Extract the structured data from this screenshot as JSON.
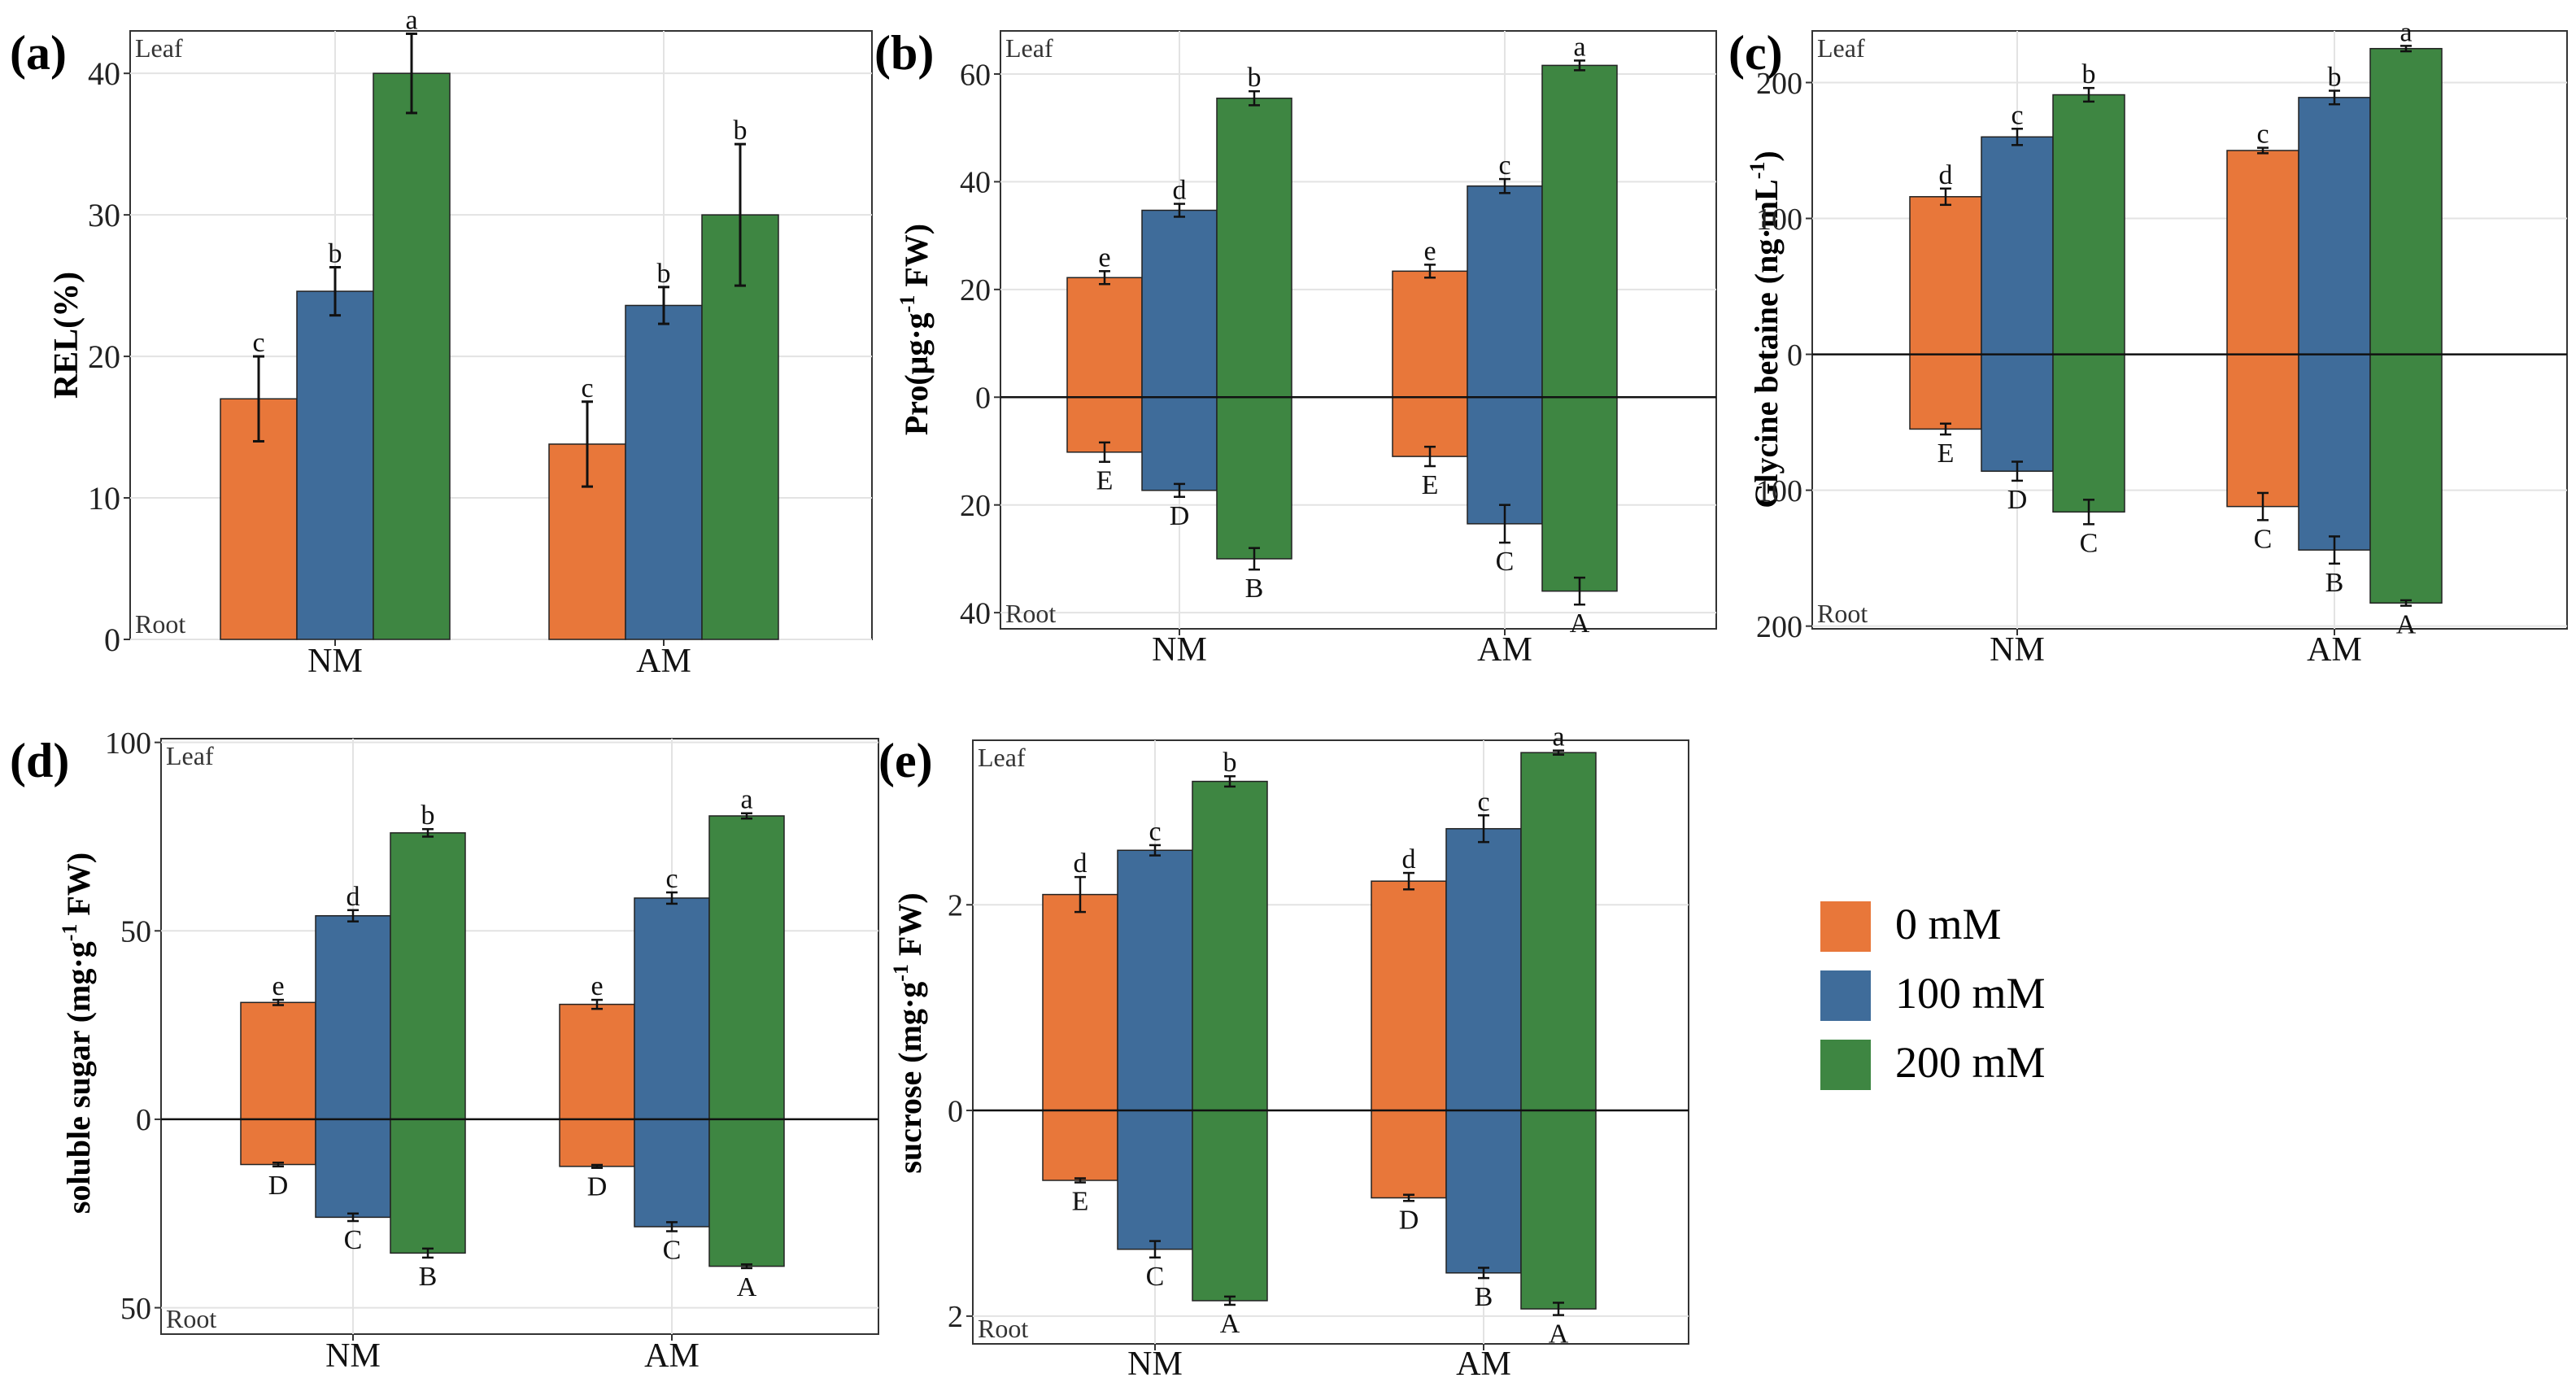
{
  "colors": {
    "g0": "#E8773A",
    "g100": "#3F6C9A",
    "g200": "#3E8642",
    "axis": "#333333",
    "grid": "#e3e3e3"
  },
  "legend": {
    "items": [
      "0 mM",
      "100 mM",
      "200 mM"
    ]
  },
  "chart_data": [
    {
      "type": "bar",
      "panel": "(a)",
      "ylabel": "REL(%)",
      "bidirectional": false,
      "categories": [
        "NM",
        "AM"
      ],
      "top_label": "Leaf",
      "bottom_label": "Root",
      "ylim": [
        0,
        43
      ],
      "yticks": [
        0,
        10,
        20,
        30,
        40
      ],
      "ytick_labels": [
        "0",
        "10",
        "20",
        "30",
        "40"
      ],
      "series": [
        {
          "name": "0 mM",
          "values": [
            17,
            13.8
          ],
          "errors": [
            3,
            3
          ],
          "letters": [
            "c",
            "c"
          ]
        },
        {
          "name": "100 mM",
          "values": [
            24.6,
            23.6
          ],
          "errors": [
            1.7,
            1.3
          ],
          "letters": [
            "b",
            "b"
          ]
        },
        {
          "name": "200 mM",
          "values": [
            40,
            30
          ],
          "errors": [
            2.8,
            5
          ],
          "letters": [
            "a",
            "b"
          ]
        }
      ]
    },
    {
      "type": "bar",
      "panel": "(b)",
      "ylabel_main": "Pro(μg·g",
      "ylabel_sup": "-1",
      "ylabel_tail": " FW)",
      "bidirectional": true,
      "categories": [
        "NM",
        "AM"
      ],
      "top_label": "Leaf",
      "bottom_label": "Root",
      "ylim": [
        -43,
        68
      ],
      "yticks": [
        -40,
        -20,
        0,
        20,
        40,
        60
      ],
      "ytick_labels": [
        "40",
        "20",
        "0",
        "20",
        "40",
        "60"
      ],
      "series": [
        {
          "name": "0 mM",
          "leaf": [
            22.2,
            23.4
          ],
          "leaf_err": [
            1.2,
            1.2
          ],
          "leaf_letters": [
            "e",
            "e"
          ],
          "root": [
            10.2,
            11
          ],
          "root_err": [
            1.8,
            1.8
          ],
          "root_letters": [
            "E",
            "E"
          ]
        },
        {
          "name": "100 mM",
          "leaf": [
            34.7,
            39.2
          ],
          "leaf_err": [
            1.2,
            1.3
          ],
          "leaf_letters": [
            "d",
            "c"
          ],
          "root": [
            17.3,
            23.5
          ],
          "root_err": [
            1.2,
            3.5
          ],
          "root_letters": [
            "D",
            "C"
          ]
        },
        {
          "name": "200 mM",
          "leaf": [
            55.5,
            61.6
          ],
          "leaf_err": [
            1.3,
            0.9
          ],
          "leaf_letters": [
            "b",
            "a"
          ],
          "root": [
            30,
            36
          ],
          "root_err": [
            2,
            2.5
          ],
          "root_letters": [
            "B",
            "A"
          ]
        }
      ]
    },
    {
      "type": "bar",
      "panel": "(c)",
      "ylabel_main": "Glycine betaine (ng·mL",
      "ylabel_sup": "-1",
      "ylabel_tail": ")",
      "bidirectional": true,
      "categories": [
        "NM",
        "AM"
      ],
      "top_label": "Leaf",
      "bottom_label": "Root",
      "ylim": [
        -202,
        238
      ],
      "yticks": [
        -200,
        -100,
        0,
        100,
        200
      ],
      "ytick_labels": [
        "200",
        "100",
        "0",
        "100",
        "200"
      ],
      "series": [
        {
          "name": "0 mM",
          "leaf": [
            116,
            150
          ],
          "leaf_err": [
            6,
            2
          ],
          "leaf_letters": [
            "d",
            "c"
          ],
          "root": [
            55,
            112
          ],
          "root_err": [
            4,
            10
          ],
          "root_letters": [
            "E",
            "C"
          ]
        },
        {
          "name": "100 mM",
          "leaf": [
            160,
            189
          ],
          "leaf_err": [
            6,
            5
          ],
          "leaf_letters": [
            "c",
            "b"
          ],
          "root": [
            86,
            144
          ],
          "root_err": [
            7,
            10
          ],
          "root_letters": [
            "D",
            "B"
          ]
        },
        {
          "name": "200 mM",
          "leaf": [
            191,
            225
          ],
          "leaf_err": [
            5,
            2
          ],
          "leaf_letters": [
            "b",
            "a"
          ],
          "root": [
            116,
            183
          ],
          "root_err": [
            9,
            2
          ],
          "root_letters": [
            "C",
            "A"
          ]
        }
      ]
    },
    {
      "type": "bar",
      "panel": "(d)",
      "ylabel_main": "soluble sugar (mg·g",
      "ylabel_sup": "-1",
      "ylabel_tail": " FW)",
      "bidirectional": true,
      "categories": [
        "NM",
        "AM"
      ],
      "top_label": "Leaf",
      "bottom_label": "Root",
      "ylim": [
        -57,
        101
      ],
      "yticks": [
        -50,
        0,
        50,
        100
      ],
      "ytick_labels": [
        "50",
        "0",
        "50",
        "100"
      ],
      "series": [
        {
          "name": "0 mM",
          "leaf": [
            31,
            30.5
          ],
          "leaf_err": [
            0.7,
            1.2
          ],
          "leaf_letters": [
            "e",
            "e"
          ],
          "root": [
            12,
            12.5
          ],
          "root_err": [
            0.5,
            0.4
          ],
          "root_letters": [
            "D",
            "D"
          ]
        },
        {
          "name": "100 mM",
          "leaf": [
            54,
            58.7
          ],
          "leaf_err": [
            1.5,
            1.5
          ],
          "leaf_letters": [
            "d",
            "c"
          ],
          "root": [
            26,
            28.5
          ],
          "root_err": [
            1,
            1.2
          ],
          "root_letters": [
            "C",
            "C"
          ]
        },
        {
          "name": "200 mM",
          "leaf": [
            76,
            80.5
          ],
          "leaf_err": [
            1,
            0.7
          ],
          "leaf_letters": [
            "b",
            "a"
          ],
          "root": [
            35.5,
            39
          ],
          "root_err": [
            1.2,
            0.5
          ],
          "root_letters": [
            "B",
            "A"
          ]
        }
      ]
    },
    {
      "type": "bar",
      "panel": "(e)",
      "ylabel_main": "sucrose (mg·g",
      "ylabel_sup": "-1",
      "ylabel_tail": " FW)",
      "bidirectional": true,
      "categories": [
        "NM",
        "AM"
      ],
      "top_label": "Leaf",
      "bottom_label": "Root",
      "ylim": [
        -2.27,
        3.6
      ],
      "yticks": [
        -2,
        0,
        2
      ],
      "ytick_labels": [
        "2",
        "0",
        "2"
      ],
      "series": [
        {
          "name": "0 mM",
          "leaf": [
            2.1,
            2.23
          ],
          "leaf_err": [
            0.17,
            0.08
          ],
          "leaf_letters": [
            "d",
            "d"
          ],
          "root": [
            0.68,
            0.85
          ],
          "root_err": [
            0.02,
            0.03
          ],
          "root_letters": [
            "E",
            "D"
          ]
        },
        {
          "name": "100 mM",
          "leaf": [
            2.53,
            2.74
          ],
          "leaf_err": [
            0.05,
            0.13
          ],
          "leaf_letters": [
            "c",
            "c"
          ],
          "root": [
            1.35,
            1.58
          ],
          "root_err": [
            0.08,
            0.05
          ],
          "root_letters": [
            "C",
            "B"
          ]
        },
        {
          "name": "200 mM",
          "leaf": [
            3.2,
            3.48
          ],
          "leaf_err": [
            0.05,
            0.02
          ],
          "leaf_letters": [
            "b",
            "a"
          ],
          "root": [
            1.85,
            1.93
          ],
          "root_err": [
            0.04,
            0.06
          ],
          "root_letters": [
            "A",
            "A"
          ]
        }
      ]
    }
  ]
}
